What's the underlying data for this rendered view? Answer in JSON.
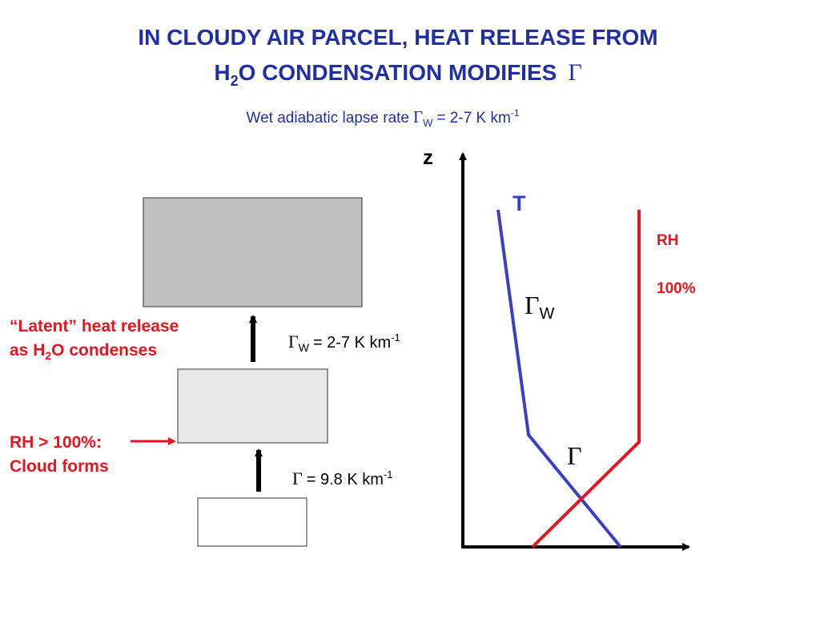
{
  "title": {
    "line1": "IN CLOUDY AIR PARCEL, HEAT RELEASE FROM",
    "line2": [
      "H",
      "2",
      "O CONDENSATION MODIFIES",
      "Γ"
    ]
  },
  "subtitle": [
    "Wet adiabatic lapse rate",
    "Γ",
    "W",
    "= 2-7 K km",
    "-1"
  ],
  "labels": {
    "latent": [
      "“Latent” heat release",
      "as H",
      "2",
      "O condenses"
    ],
    "cloud": [
      "RH > 100%:",
      "Cloud forms"
    ],
    "wet_rate": [
      "Γ",
      "W",
      "= 2-7 K km",
      "-1"
    ],
    "dry_rate": [
      "Γ",
      "= 9.8 K km",
      "-1"
    ]
  },
  "graph": {
    "z_axis": "z",
    "temperature": "T",
    "rh": "RH",
    "rh_value": "100%",
    "wet_gamma": [
      "Γ",
      "W"
    ],
    "dry_gamma": "Γ"
  }
}
